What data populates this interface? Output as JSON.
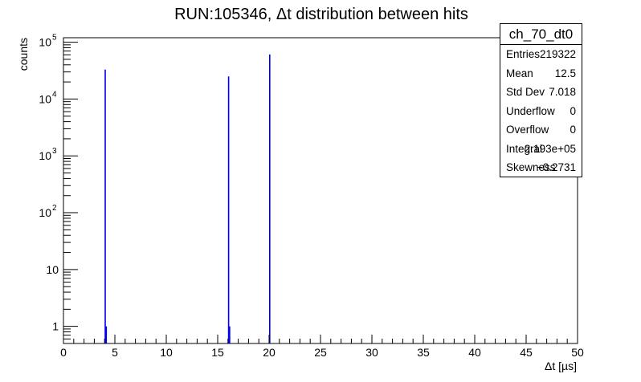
{
  "chart_data": {
    "type": "bar",
    "title": "RUN:105346, Δt distribution between hits",
    "xlabel": "Δt [µs]",
    "ylabel": "counts",
    "xlim": [
      0,
      50
    ],
    "ylim": [
      0.5,
      120000
    ],
    "log_y": true,
    "x_ticks": [
      "0",
      "5",
      "10",
      "15",
      "20",
      "25",
      "30",
      "35",
      "40",
      "45",
      "50"
    ],
    "y_ticks": [
      {
        "value": 1,
        "base": "1",
        "exp": ""
      },
      {
        "value": 10,
        "base": "10",
        "exp": ""
      },
      {
        "value": 100,
        "base": "10",
        "exp": "2"
      },
      {
        "value": 1000,
        "base": "10",
        "exp": "3"
      },
      {
        "value": 10000,
        "base": "10",
        "exp": "4"
      },
      {
        "value": 100000,
        "base": "10",
        "exp": "5"
      }
    ],
    "bin_width": 0.1,
    "bins": [
      {
        "x": 4.0,
        "count": 33000
      },
      {
        "x": 4.1,
        "count": 1
      },
      {
        "x": 16.0,
        "count": 25000
      },
      {
        "x": 16.1,
        "count": 1
      },
      {
        "x": 20.0,
        "count": 61000
      }
    ],
    "color": "#0000ee",
    "grid": false
  },
  "stats": {
    "name": "ch_70_dt0",
    "rows": [
      {
        "key": "Entries",
        "value": "219322"
      },
      {
        "key": "Mean",
        "value": "12.5"
      },
      {
        "key": "Std Dev",
        "value": "7.018"
      },
      {
        "key": "Underflow",
        "value": "0"
      },
      {
        "key": "Overflow",
        "value": "0"
      },
      {
        "key": "Integral",
        "value": "2.193e+05"
      },
      {
        "key": "Skewness",
        "value": "−0.2731"
      }
    ]
  }
}
